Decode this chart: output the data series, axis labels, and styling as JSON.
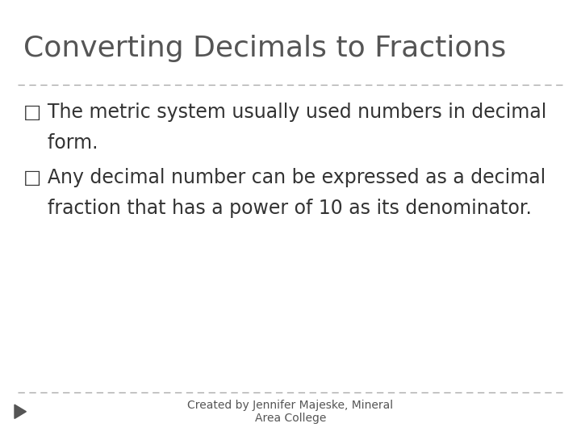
{
  "title": "Converting Decimals to Fractions",
  "title_fontsize": 26,
  "title_color": "#555555",
  "title_font": "DejaVu Sans",
  "bullet1_line1": "□ The metric system usually used numbers in decimal",
  "bullet1_line2": "    form.",
  "bullet2_line1": "□ Any decimal number can be expressed as a decimal",
  "bullet2_line2": "    fraction that has a power of 10 as its denominator.",
  "bullet_fontsize": 17,
  "bullet_color": "#333333",
  "footer_text": "Created by Jennifer Majeske, Mineral\nArea College",
  "footer_fontsize": 10,
  "footer_color": "#555555",
  "bg_color": "#ffffff",
  "divider_color": "#aaaaaa",
  "arrow_color": "#555555"
}
